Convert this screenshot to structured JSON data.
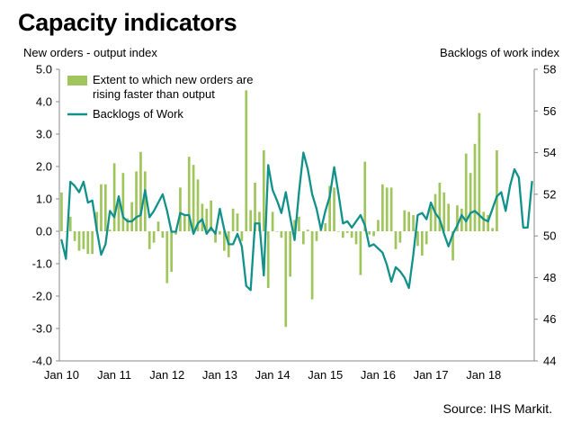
{
  "title": "Capacity indicators",
  "source": "Source: IHS Markit.",
  "colors": {
    "bar": "#9fc55c",
    "line": "#11918a",
    "axis": "#888888"
  },
  "chart_data": {
    "type": "bar+line",
    "xlabel": "",
    "ylabel_left": "New orders - output index",
    "ylabel_right": "Backlogs of work index",
    "ylim_left": [
      -4.0,
      5.0
    ],
    "ylim_right": [
      44,
      58
    ],
    "left_ticks": [
      "-4.0",
      "-3.0",
      "-2.0",
      "-1.0",
      "0.0",
      "1.0",
      "2.0",
      "3.0",
      "4.0",
      "5.0"
    ],
    "right_ticks": [
      "44",
      "46",
      "48",
      "50",
      "52",
      "54",
      "56",
      "58"
    ],
    "x_tick_labels": [
      "Jan 10",
      "Jan 11",
      "Jan 12",
      "Jan 13",
      "Jan 14",
      "Jan 15",
      "Jan 16",
      "Jan 17",
      "Jan 18"
    ],
    "x_tick_month_index": [
      0,
      12,
      24,
      36,
      48,
      60,
      72,
      84,
      96
    ],
    "legend_position": "top-left",
    "series": [
      {
        "name": "Extent to which new orders are rising faster than output",
        "type": "bar",
        "axis": "left",
        "values": [
          1.2,
          0.0,
          0.45,
          -0.3,
          -0.6,
          -0.55,
          -0.7,
          -0.7,
          0.6,
          1.45,
          1.45,
          0.05,
          2.1,
          0.9,
          1.8,
          0.4,
          0.9,
          1.85,
          2.45,
          1.85,
          -0.55,
          -0.35,
          0.3,
          -0.2,
          -1.6,
          -1.25,
          -0.1,
          1.35,
          0.5,
          2.3,
          2.05,
          1.6,
          0.85,
          0.7,
          0.95,
          -0.35,
          -0.1,
          -0.6,
          -0.8,
          0.7,
          0.55,
          -0.3,
          4.35,
          0.65,
          1.5,
          0.6,
          2.5,
          -1.75,
          0.6,
          0.0,
          -0.2,
          -2.95,
          -1.4,
          0.35,
          0.45,
          -0.4,
          0.05,
          -2.1,
          -0.3,
          0.05,
          0.25,
          1.4,
          1.35,
          0.0,
          -0.2,
          -0.05,
          -0.2,
          -0.4,
          -1.35,
          2.15,
          -0.1,
          -0.15,
          0.35,
          1.45,
          1.35,
          1.35,
          -0.55,
          -0.35,
          0.65,
          0.6,
          0.5,
          -0.45,
          -0.75,
          -0.4,
          0.75,
          1.15,
          1.5,
          1.2,
          0.85,
          -0.9,
          0.8,
          0.7,
          2.4,
          1.8,
          2.7,
          3.65,
          0.6,
          0.5,
          0.1,
          2.5
        ]
      },
      {
        "name": "Backlogs of Work",
        "type": "line",
        "axis": "right",
        "values": [
          49.8,
          48.9,
          52.6,
          52.4,
          52.1,
          52.6,
          51.6,
          51.7,
          50.3,
          49.1,
          49.6,
          51.2,
          50.9,
          51.9,
          50.9,
          50.7,
          50.7,
          50.9,
          51.0,
          52.2,
          50.9,
          51.2,
          51.6,
          52.0,
          51.2,
          50.2,
          50.2,
          51.1,
          51.0,
          51.0,
          50.1,
          50.6,
          50.8,
          50.1,
          50.4,
          50.1,
          51.3,
          50.3,
          49.6,
          49.6,
          50.1,
          49.5,
          47.6,
          47.4,
          50.6,
          50.6,
          48.1,
          53.4,
          52.2,
          51.7,
          51.1,
          52.1,
          50.9,
          49.8,
          52.1,
          54.0,
          53.2,
          52.0,
          51.3,
          50.3,
          51.2,
          51.9,
          53.3,
          52.0,
          50.6,
          50.7,
          50.4,
          50.7,
          51.0,
          50.5,
          49.5,
          49.6,
          49.4,
          49.2,
          48.6,
          47.8,
          48.5,
          48.3,
          48.0,
          47.5,
          49.1,
          51.0,
          51.1,
          50.8,
          51.6,
          51.1,
          50.8,
          50.1,
          49.5,
          50.1,
          50.5,
          51.0,
          50.7,
          51.1,
          51.2,
          51.0,
          50.8,
          50.7,
          51.3,
          51.9,
          52.1,
          51.2,
          52.4,
          53.2,
          52.8,
          50.4,
          50.4,
          52.6
        ]
      }
    ]
  }
}
